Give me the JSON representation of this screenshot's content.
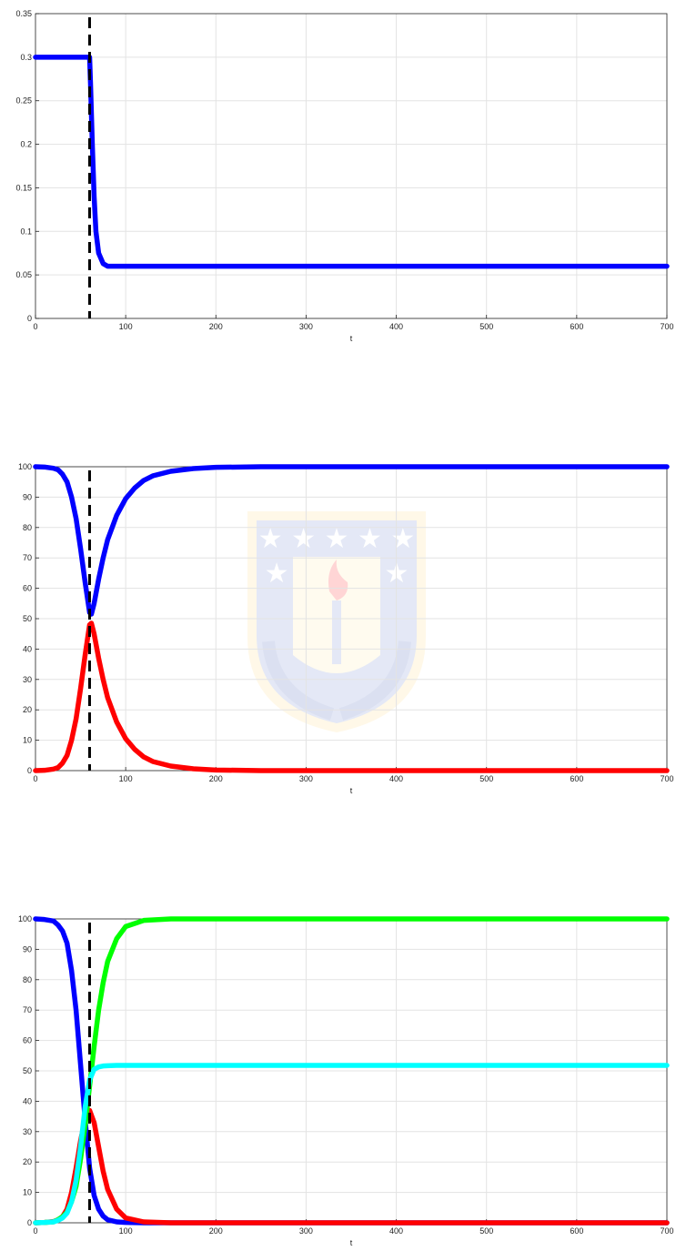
{
  "chart_data": [
    {
      "type": "line",
      "xlabel": "t",
      "ylabel": "",
      "xlim": [
        0,
        700
      ],
      "ylim": [
        0,
        0.35
      ],
      "xticks": [
        0,
        100,
        200,
        300,
        400,
        500,
        600,
        700
      ],
      "yticks": [
        0,
        0.05,
        0.1,
        0.15,
        0.2,
        0.25,
        0.3,
        0.35
      ],
      "xtick_labels": [
        "0",
        "100",
        "200",
        "300",
        "400",
        "500",
        "600",
        "700"
      ],
      "ytick_labels": [
        "0",
        "0.05",
        "0.1",
        "0.15",
        "0.2",
        "0.25",
        "0.3",
        "0.35"
      ],
      "grid": true,
      "vline": {
        "x": 60,
        "style": "dashed",
        "color": "#000000"
      },
      "series": [
        {
          "color": "#0000ff",
          "x": [
            0,
            20,
            40,
            55,
            59,
            60,
            61,
            63,
            65,
            67,
            70,
            75,
            80,
            100,
            200,
            300,
            400,
            500,
            600,
            700
          ],
          "y": [
            0.3,
            0.3,
            0.3,
            0.3,
            0.3,
            0.3,
            0.27,
            0.2,
            0.14,
            0.1,
            0.075,
            0.063,
            0.06,
            0.06,
            0.06,
            0.06,
            0.06,
            0.06,
            0.06,
            0.06
          ]
        }
      ]
    },
    {
      "type": "line",
      "xlabel": "t",
      "ylabel": "",
      "xlim": [
        0,
        700
      ],
      "ylim": [
        0,
        100
      ],
      "xticks": [
        0,
        100,
        200,
        300,
        400,
        500,
        600,
        700
      ],
      "yticks": [
        0,
        10,
        20,
        30,
        40,
        50,
        60,
        70,
        80,
        90,
        100
      ],
      "xtick_labels": [
        "0",
        "100",
        "200",
        "300",
        "400",
        "500",
        "600",
        "700"
      ],
      "ytick_labels": [
        "0",
        "10",
        "20",
        "30",
        "40",
        "50",
        "60",
        "70",
        "80",
        "90",
        "100"
      ],
      "grid": true,
      "vline": {
        "x": 60,
        "style": "dashed",
        "color": "#000000"
      },
      "series": [
        {
          "color": "#0000ff",
          "x": [
            0,
            10,
            20,
            25,
            30,
            35,
            40,
            45,
            50,
            55,
            60,
            62,
            65,
            70,
            75,
            80,
            90,
            100,
            110,
            120,
            130,
            150,
            175,
            200,
            250,
            300,
            400,
            500,
            600,
            700
          ],
          "y": [
            100,
            99.9,
            99.5,
            99,
            97.5,
            95,
            90,
            83,
            73,
            62,
            52,
            51.5,
            55,
            63,
            70,
            76,
            84,
            89.5,
            93,
            95.5,
            97,
            98.5,
            99.4,
            99.8,
            100,
            100,
            100,
            100,
            100,
            100
          ]
        },
        {
          "color": "#ff0000",
          "x": [
            0,
            10,
            20,
            25,
            30,
            35,
            40,
            45,
            50,
            55,
            60,
            62,
            65,
            70,
            75,
            80,
            90,
            100,
            110,
            120,
            130,
            150,
            175,
            200,
            250,
            300,
            400,
            500,
            600,
            700
          ],
          "y": [
            0,
            0.1,
            0.5,
            1,
            2.5,
            5,
            10,
            17,
            27,
            38,
            48,
            48.5,
            45,
            37,
            30,
            24,
            16,
            10.5,
            7,
            4.5,
            3,
            1.5,
            0.6,
            0.2,
            0,
            0,
            0,
            0,
            0,
            0
          ]
        }
      ]
    },
    {
      "type": "line",
      "xlabel": "t",
      "ylabel": "",
      "xlim": [
        0,
        700
      ],
      "ylim": [
        0,
        100
      ],
      "xticks": [
        0,
        100,
        200,
        300,
        400,
        500,
        600,
        700
      ],
      "yticks": [
        0,
        10,
        20,
        30,
        40,
        50,
        60,
        70,
        80,
        90,
        100
      ],
      "xtick_labels": [
        "0",
        "100",
        "200",
        "300",
        "400",
        "500",
        "600",
        "700"
      ],
      "ytick_labels": [
        "0",
        "10",
        "20",
        "30",
        "40",
        "50",
        "60",
        "70",
        "80",
        "90",
        "100"
      ],
      "grid": true,
      "vline": {
        "x": 60,
        "style": "dashed",
        "color": "#000000"
      },
      "series": [
        {
          "color": "#0000ff",
          "x": [
            0,
            10,
            20,
            25,
            30,
            35,
            40,
            45,
            50,
            55,
            60,
            65,
            70,
            75,
            80,
            90,
            100,
            120,
            150,
            200,
            300,
            400,
            500,
            600,
            700
          ],
          "y": [
            100,
            99.8,
            99.3,
            98,
            96,
            92,
            83,
            70,
            52,
            34,
            18,
            9,
            4.5,
            2.2,
            1,
            0.3,
            0.1,
            0,
            0,
            0,
            0,
            0,
            0,
            0,
            0
          ]
        },
        {
          "color": "#ff0000",
          "x": [
            0,
            10,
            20,
            25,
            30,
            35,
            40,
            45,
            50,
            55,
            60,
            65,
            70,
            75,
            80,
            90,
            100,
            120,
            150,
            200,
            300,
            400,
            500,
            600,
            700
          ],
          "y": [
            0,
            0.1,
            0.4,
            1,
            2,
            4.5,
            10,
            18,
            27,
            34,
            37,
            33,
            25,
            17,
            11,
            4.5,
            1.6,
            0.3,
            0,
            0,
            0,
            0,
            0,
            0,
            0
          ]
        },
        {
          "color": "#00ff00",
          "x": [
            0,
            10,
            20,
            25,
            30,
            35,
            40,
            45,
            50,
            55,
            60,
            65,
            70,
            75,
            80,
            90,
            100,
            120,
            150,
            200,
            300,
            400,
            500,
            600,
            700
          ],
          "y": [
            0,
            0.1,
            0.3,
            1,
            2,
            3.5,
            7,
            12,
            21,
            32,
            45,
            58,
            70,
            79,
            86,
            93.5,
            97.5,
            99.5,
            100,
            100,
            100,
            100,
            100,
            100,
            100
          ]
        },
        {
          "color": "#00ffff",
          "x": [
            0,
            10,
            20,
            25,
            30,
            35,
            40,
            45,
            50,
            55,
            60,
            65,
            70,
            75,
            80,
            90,
            100,
            120,
            150,
            200,
            300,
            400,
            500,
            600,
            700
          ],
          "y": [
            0,
            0.1,
            0.3,
            0.8,
            1.6,
            3.2,
            7,
            14,
            25,
            38,
            47,
            50.5,
            51.3,
            51.6,
            51.7,
            51.8,
            51.8,
            51.8,
            51.8,
            51.8,
            51.8,
            51.8,
            51.8,
            51.8,
            51.8
          ]
        }
      ]
    }
  ]
}
